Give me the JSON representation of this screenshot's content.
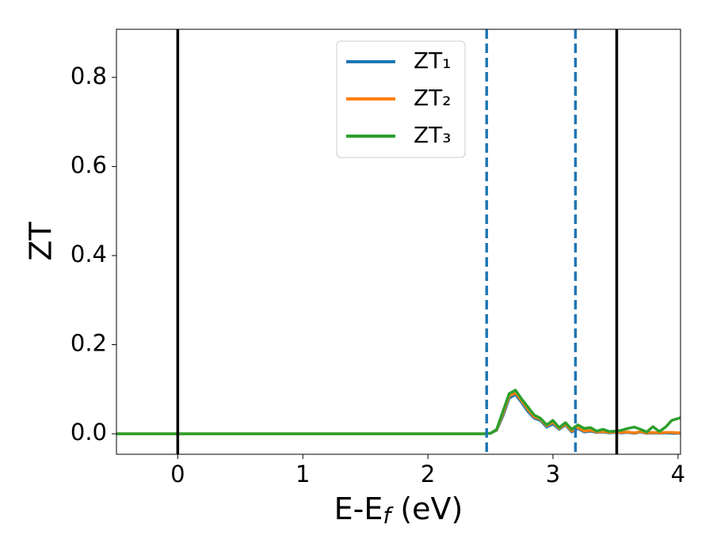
{
  "chart_data": {
    "type": "line",
    "xlabel": [
      "E-E",
      "f",
      " (eV)"
    ],
    "ylabel": "ZT",
    "x": [
      -0.49,
      2.45,
      2.5,
      2.55,
      2.6,
      2.65,
      2.7,
      2.75,
      2.8,
      2.85,
      2.9,
      2.95,
      3.0,
      3.05,
      3.1,
      3.15,
      3.2,
      3.25,
      3.3,
      3.35,
      3.4,
      3.45,
      3.5,
      3.55,
      3.6,
      3.65,
      3.7,
      3.75,
      3.8,
      3.85,
      3.9,
      3.95,
      4.02
    ],
    "series": [
      {
        "name": "ZT₁",
        "color": "#1f77b4",
        "values": [
          0,
          0,
          0.001,
          0.008,
          0.04,
          0.08,
          0.088,
          0.07,
          0.05,
          0.035,
          0.03,
          0.015,
          0.022,
          0.01,
          0.02,
          0.004,
          0.012,
          0.004,
          0.006,
          0.003,
          0.004,
          0.002,
          0.003,
          0.002,
          0.003,
          0.001,
          0.004,
          0.001,
          0.002,
          0.001,
          0.002,
          0.001,
          0.001
        ]
      },
      {
        "name": "ZT₂",
        "color": "#ff7f0e",
        "values": [
          0,
          0,
          0.001,
          0.009,
          0.045,
          0.085,
          0.092,
          0.074,
          0.055,
          0.038,
          0.033,
          0.018,
          0.026,
          0.012,
          0.022,
          0.006,
          0.014,
          0.006,
          0.008,
          0.004,
          0.005,
          0.003,
          0.004,
          0.003,
          0.004,
          0.002,
          0.005,
          0.002,
          0.003,
          0.002,
          0.003,
          0.003,
          0.002
        ]
      },
      {
        "name": "ZT₃",
        "color": "#2ca02c",
        "values": [
          0,
          0,
          0.001,
          0.01,
          0.05,
          0.09,
          0.098,
          0.078,
          0.06,
          0.042,
          0.035,
          0.02,
          0.03,
          0.014,
          0.025,
          0.01,
          0.02,
          0.012,
          0.014,
          0.006,
          0.01,
          0.005,
          0.006,
          0.008,
          0.012,
          0.015,
          0.01,
          0.004,
          0.016,
          0.005,
          0.015,
          0.03,
          0.036
        ]
      }
    ],
    "vlines": [
      {
        "x": 0,
        "color": "#000000",
        "style": "solid"
      },
      {
        "x": 3.51,
        "color": "#000000",
        "style": "solid"
      },
      {
        "x": 2.47,
        "color": "#1f77b4",
        "style": "dashed"
      },
      {
        "x": 3.18,
        "color": "#1f77b4",
        "style": "dashed"
      }
    ],
    "xlim": [
      -0.49,
      4.02
    ],
    "ylim": [
      -0.046,
      0.908
    ],
    "xticks": [
      0,
      1,
      2,
      3,
      4
    ],
    "yticks": [
      {
        "value": 0,
        "label": "0.0"
      },
      0.2,
      0.4,
      0.6,
      0.8
    ],
    "grid": false,
    "legend": "upper center"
  }
}
